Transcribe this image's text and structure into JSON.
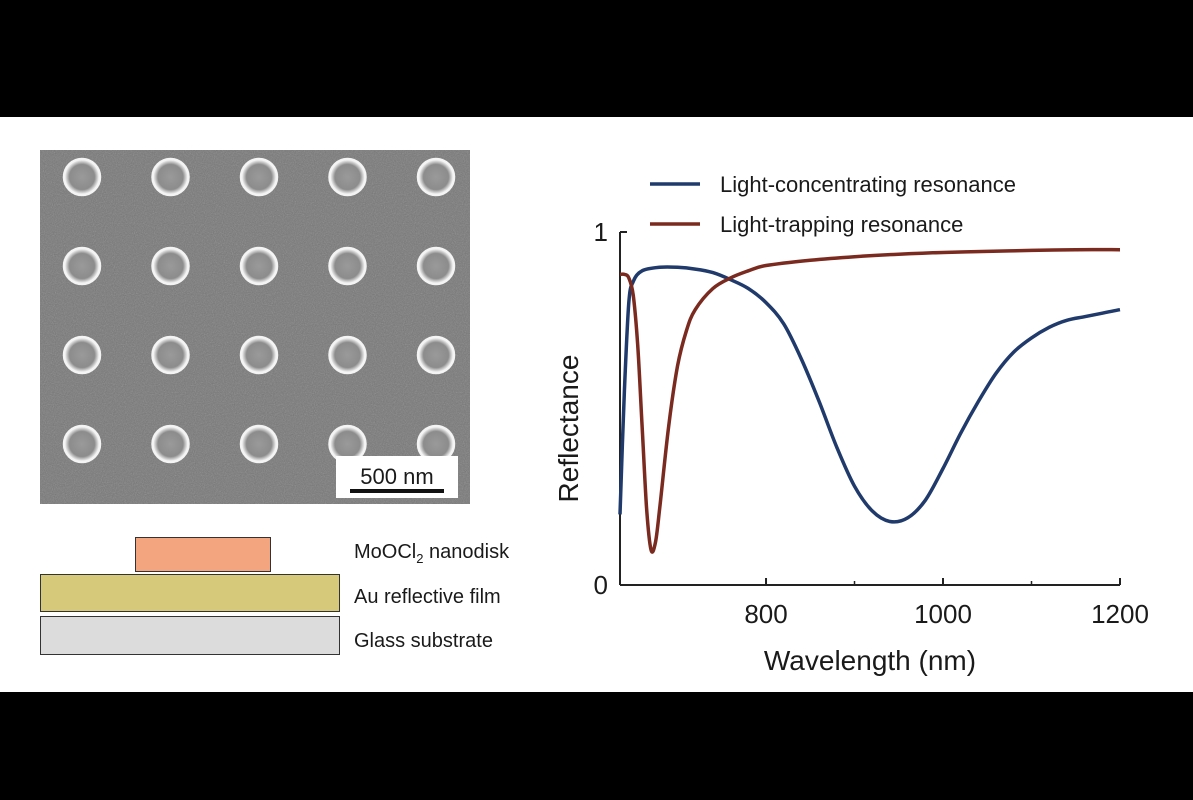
{
  "sem_image": {
    "rows": 4,
    "cols": 5,
    "scale_bar_label": "500 nm"
  },
  "layer_stack": {
    "layers": [
      {
        "name_prefix": "MoOCl",
        "name_sub": "2",
        "name_suffix": " nanodisk",
        "color": "#f2a57e"
      },
      {
        "name": "Au reflective film",
        "color": "#d6c97a"
      },
      {
        "name": "Glass substrate",
        "color": "#dcdcdc"
      }
    ]
  },
  "chart_data": {
    "type": "line",
    "title": "",
    "xlabel": "Wavelength (nm)",
    "ylabel": "Reflectance",
    "xlim": [
      635,
      1200
    ],
    "ylim": [
      0,
      1
    ],
    "xticks": [
      800,
      1000,
      1200
    ],
    "yticks": [
      0,
      1
    ],
    "grid": false,
    "legend_position": "top",
    "series": [
      {
        "name": "Light-concentrating resonance",
        "color": "#1f3a6b",
        "x": [
          635,
          640,
          645,
          650,
          660,
          680,
          700,
          720,
          740,
          760,
          780,
          800,
          820,
          840,
          860,
          880,
          900,
          920,
          940,
          960,
          980,
          1000,
          1020,
          1040,
          1060,
          1080,
          1100,
          1120,
          1140,
          1160,
          1180,
          1200
        ],
        "y": [
          0.2,
          0.55,
          0.8,
          0.86,
          0.89,
          0.9,
          0.9,
          0.895,
          0.885,
          0.865,
          0.84,
          0.8,
          0.74,
          0.64,
          0.52,
          0.39,
          0.28,
          0.21,
          0.18,
          0.19,
          0.24,
          0.33,
          0.43,
          0.52,
          0.6,
          0.66,
          0.7,
          0.73,
          0.75,
          0.76,
          0.77,
          0.78
        ]
      },
      {
        "name": "Light-trapping resonance",
        "color": "#7a2a1e",
        "x": [
          635,
          640,
          645,
          650,
          655,
          660,
          665,
          670,
          675,
          680,
          690,
          700,
          710,
          720,
          740,
          760,
          780,
          800,
          850,
          900,
          950,
          1000,
          1050,
          1100,
          1150,
          1200
        ],
        "y": [
          0.88,
          0.88,
          0.87,
          0.82,
          0.68,
          0.45,
          0.22,
          0.1,
          0.12,
          0.22,
          0.45,
          0.62,
          0.72,
          0.78,
          0.84,
          0.87,
          0.89,
          0.905,
          0.92,
          0.93,
          0.937,
          0.942,
          0.945,
          0.948,
          0.95,
          0.95
        ]
      }
    ]
  }
}
